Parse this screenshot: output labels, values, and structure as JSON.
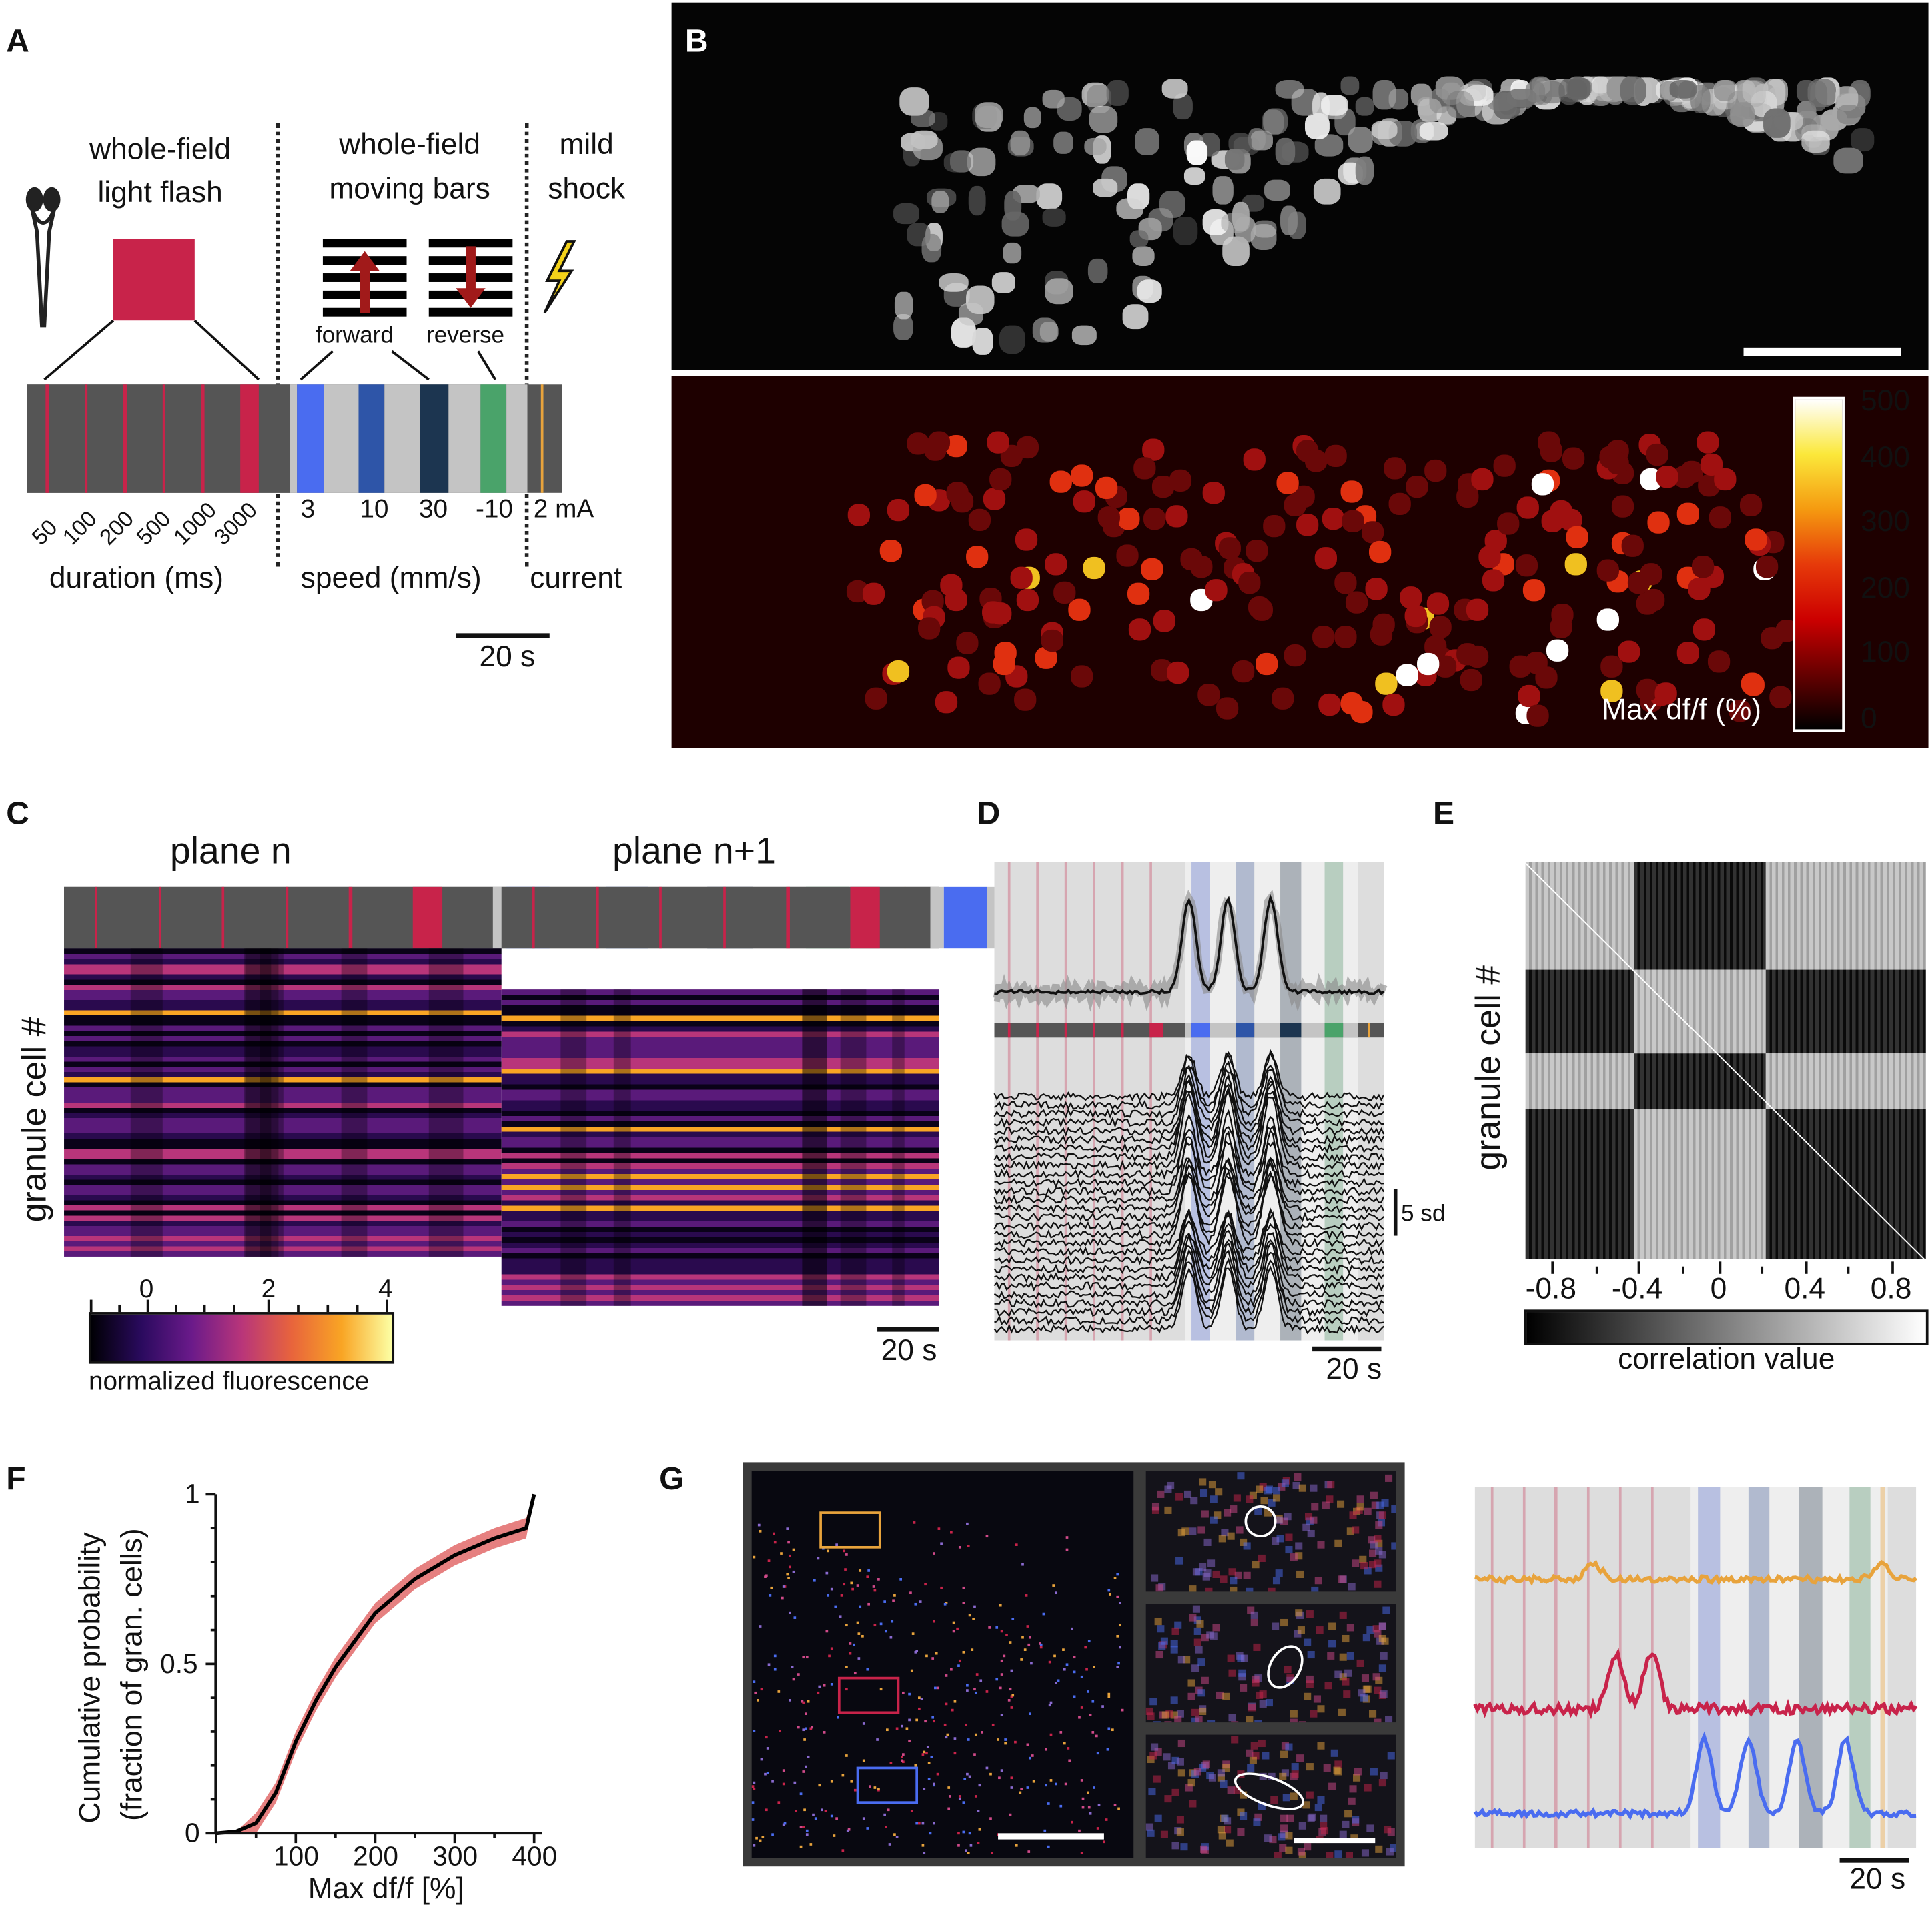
{
  "panels": {
    "a": "A",
    "b": "B",
    "c": "C",
    "d": "D",
    "e": "E",
    "f": "F",
    "g": "G"
  },
  "colors": {
    "red": "#c8234a",
    "blue": "#4a6cf0",
    "mid_blue": "#2e55a8",
    "navy": "#1c3550",
    "green": "#4aa36a",
    "orange": "#e8a33c",
    "dark_gray": "#555555",
    "light_gray": "#c4c4c4"
  },
  "panel_a": {
    "title_flash_1": "whole-field",
    "title_flash_2": "light flash",
    "title_bars_1": "whole-field",
    "title_bars_2": "moving bars",
    "title_shock_1": "mild",
    "title_shock_2": "shock",
    "forward": "forward",
    "reverse": "reverse",
    "durations": [
      "50",
      "100",
      "200",
      "500",
      "1000",
      "3000"
    ],
    "speeds": [
      "3",
      "10",
      "30",
      "-10"
    ],
    "current_value": "2 mA",
    "duration_label": "duration (ms)",
    "speed_label": "speed (mm/s)",
    "current_label": "current",
    "scalebar": "20 s"
  },
  "panel_b": {
    "colorbar_label": "Max df/f (%)",
    "colorbar_ticks": [
      "500",
      "400",
      "300",
      "200",
      "100",
      "0"
    ]
  },
  "panel_c": {
    "plane_n": "plane n",
    "plane_n1": "plane n+1",
    "ylabel": "granule cell #",
    "colorbar_ticks": [
      "0",
      "2",
      "4"
    ],
    "colorbar_label": "normalized fluorescence",
    "scalebar": "20 s"
  },
  "panel_d": {
    "scalebar_v": "5 sd",
    "scalebar_h": "20 s"
  },
  "panel_e": {
    "ylabel": "granule cell #",
    "colorbar_ticks": [
      "-0.8",
      "-0.4",
      "0",
      "0.4",
      "0.8"
    ],
    "colorbar_label": "correlation value"
  },
  "panel_g": {
    "scalebar": "20 s"
  },
  "chart_data": {
    "type": "line",
    "title": "",
    "xlabel": "Max df/f [%]",
    "ylabel_1": "Cumulative probability",
    "ylabel_2": "(fraction of gran. cells)",
    "xlim": [
      0,
      400
    ],
    "ylim": [
      0,
      1
    ],
    "xticks": [
      "100",
      "200",
      "300",
      "400"
    ],
    "yticks": [
      "0",
      "0.5",
      "1"
    ],
    "series": [
      {
        "name": "mean",
        "color": "#000000",
        "x": [
          0,
          25,
          50,
          75,
          100,
          125,
          150,
          200,
          250,
          300,
          350,
          390,
          400
        ],
        "y": [
          0,
          0.005,
          0.03,
          0.12,
          0.27,
          0.39,
          0.49,
          0.65,
          0.75,
          0.82,
          0.87,
          0.9,
          1.0
        ]
      }
    ],
    "band": {
      "name": "sem",
      "color": "#e06060",
      "halfwidth": 0.03
    }
  }
}
